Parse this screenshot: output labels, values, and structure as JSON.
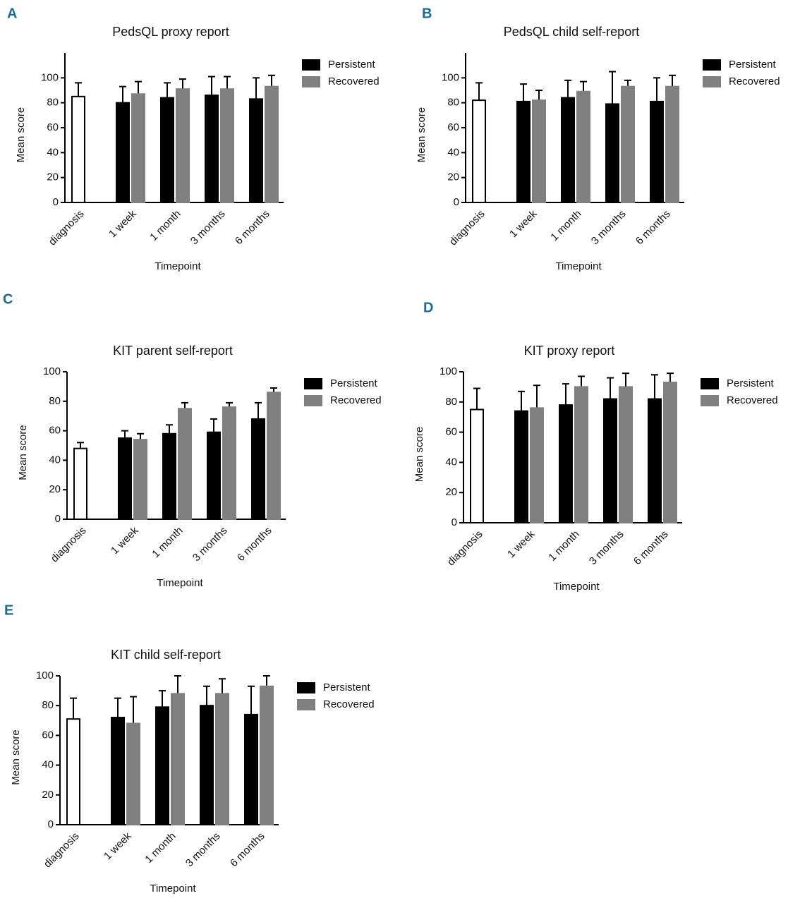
{
  "chart_data": [
    {
      "type": "bar",
      "label": "A",
      "title": "PedsQL proxy report",
      "xlabel": "Timepoint",
      "ylabel": "Mean score",
      "categories": [
        "diagnosis",
        "1 week",
        "1 month",
        "3 months",
        "6 months"
      ],
      "diagnosis": {
        "color": "#ffffff",
        "values": [
          85,
          null,
          null,
          null,
          null
        ],
        "errors": [
          11,
          null,
          null,
          null,
          null
        ]
      },
      "series": [
        {
          "name": "Persistent",
          "color": "#000000",
          "values": [
            null,
            80,
            84,
            86,
            83
          ],
          "errors": [
            null,
            13,
            12,
            15,
            17
          ]
        },
        {
          "name": "Recovered",
          "color": "#808080",
          "values": [
            null,
            87,
            91,
            91,
            93
          ],
          "errors": [
            null,
            10,
            8,
            10,
            9
          ]
        }
      ],
      "ylim": [
        0,
        120
      ],
      "yticks": [
        0,
        20,
        40,
        60,
        80,
        100
      ]
    },
    {
      "type": "bar",
      "label": "B",
      "title": "PedsQL child self-report",
      "xlabel": "Timepoint",
      "ylabel": "Mean score",
      "categories": [
        "diagnosis",
        "1 week",
        "1 month",
        "3 months",
        "6 months"
      ],
      "diagnosis": {
        "color": "#ffffff",
        "values": [
          82,
          null,
          null,
          null,
          null
        ],
        "errors": [
          14,
          null,
          null,
          null,
          null
        ]
      },
      "series": [
        {
          "name": "Persistent",
          "color": "#000000",
          "values": [
            null,
            81,
            84,
            79,
            81
          ],
          "errors": [
            null,
            14,
            14,
            26,
            19
          ]
        },
        {
          "name": "Recovered",
          "color": "#808080",
          "values": [
            null,
            82,
            89,
            93,
            93
          ],
          "errors": [
            null,
            8,
            8,
            5,
            9
          ]
        }
      ],
      "ylim": [
        0,
        120
      ],
      "yticks": [
        0,
        20,
        40,
        60,
        80,
        100
      ]
    },
    {
      "type": "bar",
      "label": "C",
      "title": "KIT parent self-report",
      "xlabel": "Timepoint",
      "ylabel": "Mean score",
      "categories": [
        "diagnosis",
        "1 week",
        "1 month",
        "3 months",
        "6 months"
      ],
      "diagnosis": {
        "color": "#ffffff",
        "values": [
          48,
          null,
          null,
          null,
          null
        ],
        "errors": [
          4,
          null,
          null,
          null,
          null
        ]
      },
      "series": [
        {
          "name": "Persistent",
          "color": "#000000",
          "values": [
            null,
            55,
            58,
            59,
            68
          ],
          "errors": [
            null,
            5,
            6,
            9,
            11
          ]
        },
        {
          "name": "Recovered",
          "color": "#808080",
          "values": [
            null,
            54,
            75,
            76,
            86
          ],
          "errors": [
            null,
            4,
            4,
            3,
            3
          ]
        }
      ],
      "ylim": [
        0,
        100
      ],
      "yticks": [
        0,
        20,
        40,
        60,
        80,
        100
      ]
    },
    {
      "type": "bar",
      "label": "D",
      "title": "KIT proxy report",
      "xlabel": "Timepoint",
      "ylabel": "Mean score",
      "categories": [
        "diagnosis",
        "1 week",
        "1 month",
        "3 months",
        "6 months"
      ],
      "diagnosis": {
        "color": "#ffffff",
        "values": [
          75,
          null,
          null,
          null,
          null
        ],
        "errors": [
          14,
          null,
          null,
          null,
          null
        ]
      },
      "series": [
        {
          "name": "Persistent",
          "color": "#000000",
          "values": [
            null,
            74,
            78,
            82,
            82
          ],
          "errors": [
            null,
            13,
            14,
            14,
            16
          ]
        },
        {
          "name": "Recovered",
          "color": "#808080",
          "values": [
            null,
            76,
            90,
            90,
            93
          ],
          "errors": [
            null,
            15,
            7,
            9,
            6
          ]
        }
      ],
      "ylim": [
        0,
        100
      ],
      "yticks": [
        0,
        20,
        40,
        60,
        80,
        100
      ]
    },
    {
      "type": "bar",
      "label": "E",
      "title": "KIT child self-report",
      "xlabel": "Timepoint",
      "ylabel": "Mean score",
      "categories": [
        "diagnosis",
        "1 week",
        "1 month",
        "3 months",
        "6 months"
      ],
      "diagnosis": {
        "color": "#ffffff",
        "values": [
          71,
          null,
          null,
          null,
          null
        ],
        "errors": [
          14,
          null,
          null,
          null,
          null
        ]
      },
      "series": [
        {
          "name": "Persistent",
          "color": "#000000",
          "values": [
            null,
            72,
            79,
            80,
            74
          ],
          "errors": [
            null,
            13,
            11,
            13,
            19
          ]
        },
        {
          "name": "Recovered",
          "color": "#808080",
          "values": [
            null,
            68,
            88,
            88,
            93
          ],
          "errors": [
            null,
            18,
            12,
            10,
            7
          ]
        }
      ],
      "ylim": [
        0,
        100
      ],
      "yticks": [
        0,
        20,
        40,
        60,
        80,
        100
      ]
    }
  ]
}
